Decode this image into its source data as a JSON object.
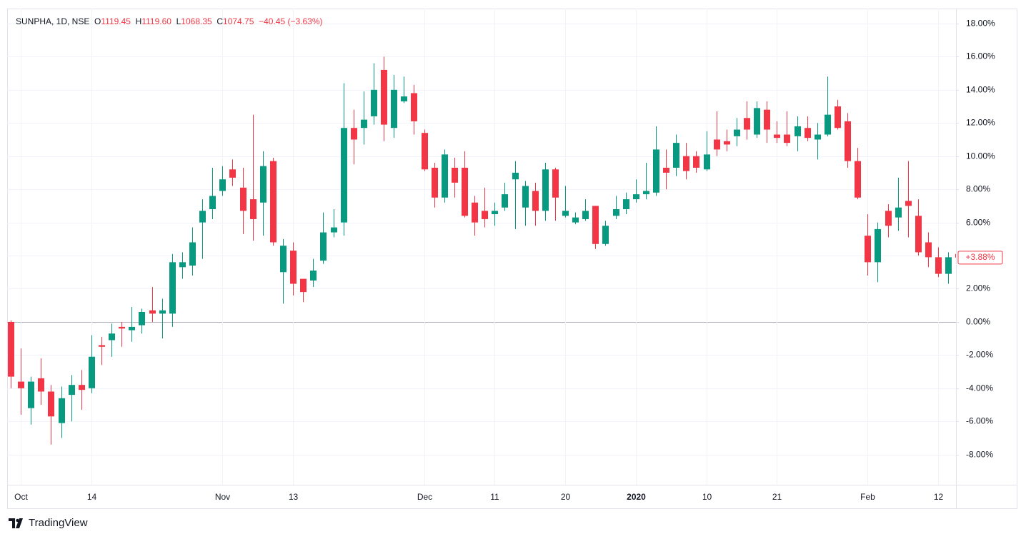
{
  "header": {
    "symbol": "SUNPHA, 1D, NSE",
    "ohlc": [
      {
        "label": "O",
        "value": "1119.45"
      },
      {
        "label": "H",
        "value": "1119.60"
      },
      {
        "label": "L",
        "value": "1068.35"
      },
      {
        "label": "C",
        "value": "1074.75"
      }
    ],
    "change": "−40.45 (−3.63%)"
  },
  "brand": "TradingView",
  "chart_data": {
    "type": "candlestick",
    "up_color": "#089981",
    "down_color": "#f23645",
    "grid": true,
    "last_label": "+3.88%",
    "ylim": [
      -9.82,
      18.9
    ],
    "yticks": [
      {
        "value": 18,
        "label": "18.00%"
      },
      {
        "value": 16,
        "label": "16.00%"
      },
      {
        "value": 14,
        "label": "14.00%"
      },
      {
        "value": 12,
        "label": "12.00%"
      },
      {
        "value": 10,
        "label": "10.00%"
      },
      {
        "value": 8,
        "label": "8.00%"
      },
      {
        "value": 6,
        "label": "6.00%"
      },
      {
        "value": 4,
        "label": "4.00%"
      },
      {
        "value": 2,
        "label": "2.00%"
      },
      {
        "value": 0,
        "label": "0.00%"
      },
      {
        "value": -2,
        "label": "-2.00%"
      },
      {
        "value": -4,
        "label": "-4.00%"
      },
      {
        "value": -6,
        "label": "-6.00%"
      },
      {
        "value": -8,
        "label": "-8.00%"
      }
    ],
    "categories": [
      null,
      "Oct",
      null,
      null,
      null,
      null,
      null,
      null,
      "14",
      null,
      null,
      null,
      null,
      null,
      null,
      null,
      null,
      null,
      null,
      null,
      null,
      "Nov",
      null,
      null,
      null,
      null,
      null,
      null,
      "13",
      null,
      null,
      null,
      null,
      null,
      null,
      null,
      null,
      null,
      null,
      null,
      null,
      "Dec",
      null,
      null,
      null,
      null,
      null,
      null,
      "11",
      null,
      null,
      null,
      null,
      null,
      null,
      "20",
      null,
      null,
      null,
      null,
      null,
      null,
      "2020",
      null,
      null,
      null,
      null,
      null,
      null,
      "10",
      null,
      null,
      null,
      null,
      null,
      null,
      "21",
      null,
      null,
      null,
      null,
      null,
      null,
      null,
      null,
      "Feb",
      null,
      null,
      null,
      null,
      null,
      null,
      "12",
      null,
      null
    ],
    "open": [
      0,
      -3.6,
      -5.2,
      -3.4,
      -4.2,
      -6.1,
      -4.4,
      -3.8,
      -4,
      -1.4,
      -1.1,
      -0.3,
      -0.5,
      -0.2,
      0.7,
      0.5,
      0.5,
      3.3,
      3.4,
      6,
      6.8,
      7.9,
      9.2,
      8.1,
      7.4,
      7.2,
      9.7,
      3,
      4.3,
      2.6,
      2.5,
      3.7,
      5.4,
      6,
      11.7,
      11.7,
      12.4,
      15.2,
      11.7,
      13.3,
      13.8,
      11.4,
      9.3,
      7.5,
      9.3,
      9.3,
      7.2,
      6.7,
      6.5,
      6.9,
      8.6,
      6.9,
      7.9,
      6.7,
      9.2,
      6.4,
      6,
      6.2,
      7,
      4.7,
      6.4,
      6.8,
      7.4,
      7.7,
      7.8,
      9.3,
      9.3,
      10,
      10,
      9.2,
      11,
      10.9,
      11.2,
      12.3,
      11.3,
      12.8,
      11.3,
      11.3,
      11.2,
      11.7,
      11,
      11.3,
      13,
      12.1,
      9.7,
      5.2,
      3.6,
      6.7,
      6.3,
      7.3,
      6.4,
      4.8,
      3.9,
      2.9,
      4.1
    ],
    "high": [
      0.1,
      -1.6,
      -3.3,
      -2.2,
      -3.8,
      -3.9,
      -3.2,
      -2.9,
      -0.8,
      -0.9,
      -0.1,
      0,
      0.9,
      0.8,
      2.1,
      1.4,
      4.1,
      4.2,
      5.7,
      7.4,
      9.3,
      9.4,
      9.8,
      9.3,
      12.5,
      10.3,
      9.9,
      5,
      4.8,
      2.6,
      3.8,
      6.6,
      6.8,
      14.4,
      12.8,
      13.9,
      15.6,
      16,
      14.9,
      14.8,
      14.3,
      11.6,
      9.6,
      10.4,
      9.9,
      10.3,
      7.6,
      8.1,
      7.2,
      8.4,
      9.7,
      8.5,
      8.4,
      9.6,
      9.3,
      8.2,
      6.6,
      7.4,
      7,
      6.1,
      7.6,
      7.8,
      8.6,
      9.6,
      11.8,
      10.4,
      11.3,
      10.8,
      10.3,
      11.5,
      12.7,
      11.6,
      12.3,
      13.3,
      13.3,
      13.3,
      12.1,
      12.7,
      12.4,
      12.4,
      12,
      14.8,
      13.4,
      12.6,
      10.5,
      6.5,
      6,
      7.1,
      8.7,
      9.7,
      7.4,
      5.4,
      4.5,
      4.2,
      4.2
    ],
    "low": [
      -4,
      -5.6,
      -6.2,
      -5,
      -7.4,
      -7,
      -6,
      -5.3,
      -4.3,
      -2.6,
      -2.1,
      -1.5,
      -1.2,
      -0.7,
      0,
      -1,
      -0.3,
      2.6,
      2.8,
      3.8,
      6.2,
      7.6,
      8.2,
      5.3,
      4.9,
      5.2,
      4.6,
      1.1,
      1.6,
      1.2,
      2.1,
      3.5,
      5.1,
      5.2,
      9.5,
      10.7,
      11.9,
      10.9,
      11.1,
      13.2,
      11.3,
      9.1,
      6.9,
      7.2,
      7.5,
      6.3,
      5.2,
      5.7,
      5.8,
      6.7,
      5.6,
      5.8,
      5.8,
      6.1,
      6.1,
      6.3,
      5.9,
      6.1,
      4.4,
      4.6,
      6.2,
      6.5,
      7.2,
      7.4,
      7.6,
      8,
      8.8,
      8.6,
      9,
      9.1,
      10,
      10.3,
      10.6,
      11,
      11.1,
      10.8,
      10.8,
      10.6,
      10.3,
      10.9,
      9.8,
      11.2,
      11.6,
      9.3,
      7.4,
      2.8,
      2.4,
      5.1,
      5.5,
      5.1,
      4,
      3.3,
      2.7,
      2.3,
      3.7
    ],
    "close": [
      -3.3,
      -4,
      -3.6,
      -4.2,
      -5.7,
      -4.6,
      -3.8,
      -4.1,
      -2.1,
      -1.5,
      -0.7,
      -0.4,
      -0.3,
      0.6,
      0.5,
      0.7,
      3.6,
      3.6,
      4.8,
      6.7,
      7.6,
      8.6,
      8.7,
      6.7,
      6.2,
      9.4,
      4.8,
      4.6,
      2.3,
      1.8,
      3.1,
      5.4,
      5.7,
      11.7,
      11,
      12.2,
      14,
      11.9,
      14,
      13.6,
      12.1,
      9.2,
      7.5,
      10.1,
      8.4,
      6.4,
      6,
      6.2,
      6.7,
      7.7,
      9,
      8.2,
      6.7,
      9.2,
      7.5,
      6.7,
      6.3,
      6.7,
      4.7,
      5.8,
      6.8,
      7.4,
      7.7,
      7.9,
      10.4,
      9,
      10.8,
      9.1,
      9.3,
      10.1,
      10.4,
      10.7,
      11.6,
      11.6,
      12.9,
      11.6,
      11.1,
      10.8,
      11.8,
      11.1,
      11.3,
      12.5,
      11.7,
      9.7,
      7.5,
      3.6,
      5.6,
      5.8,
      6.9,
      7,
      4.2,
      3.9,
      2.9,
      3.9,
      3.88
    ]
  }
}
